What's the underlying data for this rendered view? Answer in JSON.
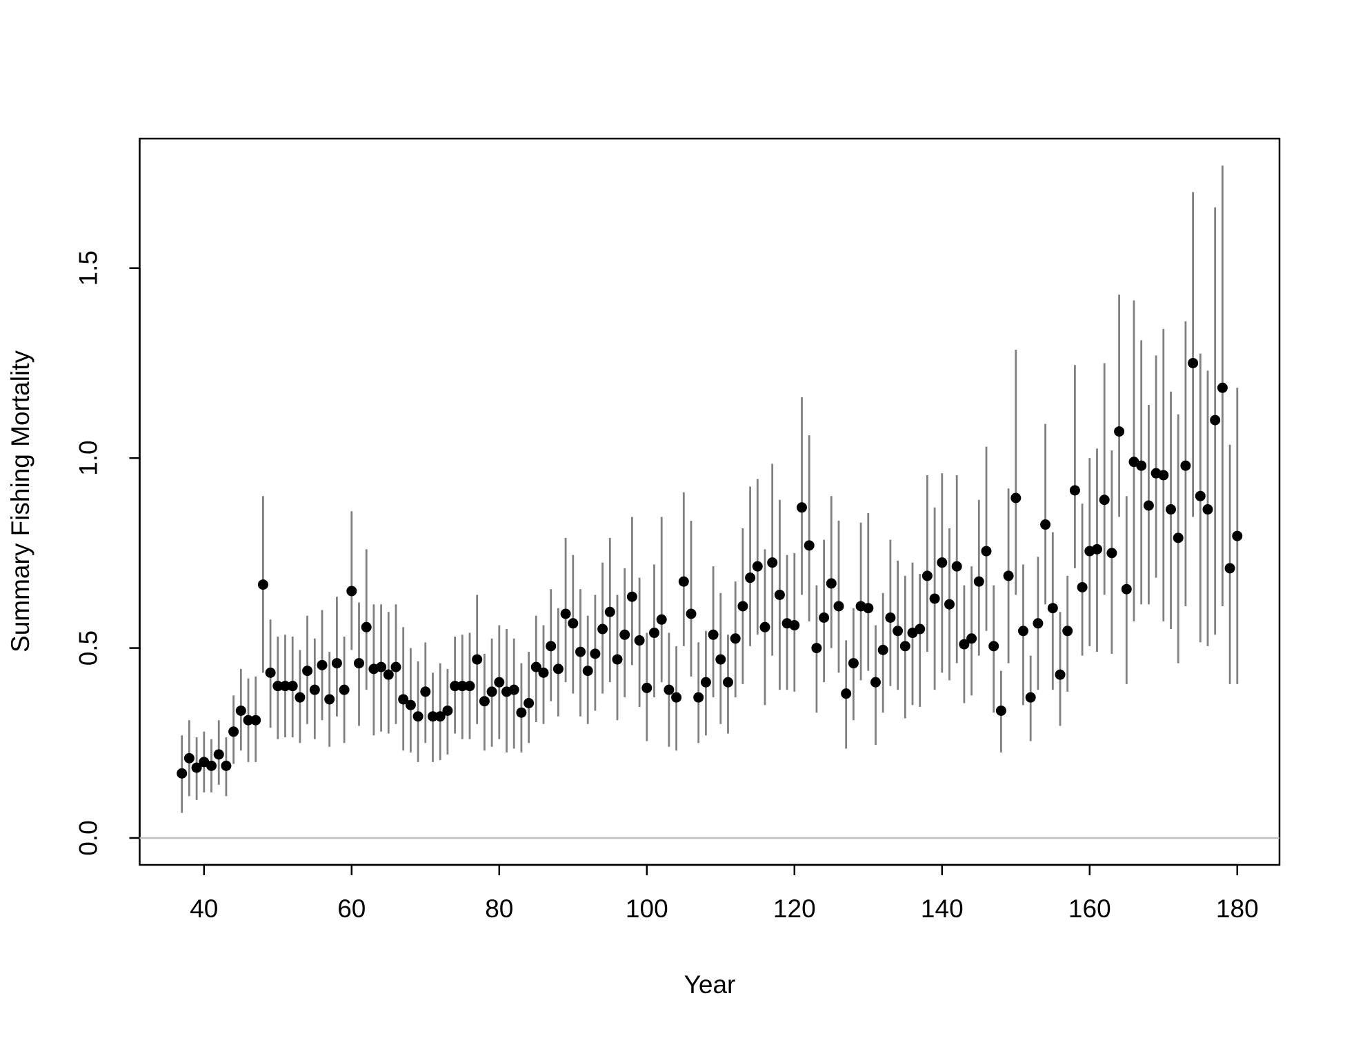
{
  "chart_data": {
    "type": "errorbar-scatter",
    "xlabel": "Year",
    "ylabel": "Summary Fishing Mortality",
    "x": [
      37,
      38,
      39,
      40,
      41,
      42,
      43,
      44,
      45,
      46,
      47,
      48,
      49,
      50,
      51,
      52,
      53,
      54,
      55,
      56,
      57,
      58,
      59,
      60,
      61,
      62,
      63,
      64,
      65,
      66,
      67,
      68,
      69,
      70,
      71,
      72,
      73,
      74,
      75,
      76,
      77,
      78,
      79,
      80,
      81,
      82,
      83,
      84,
      85,
      86,
      87,
      88,
      89,
      90,
      91,
      92,
      93,
      94,
      95,
      96,
      97,
      98,
      99,
      100,
      101,
      102,
      103,
      104,
      105,
      106,
      107,
      108,
      109,
      110,
      111,
      112,
      113,
      114,
      115,
      116,
      117,
      118,
      119,
      120,
      121,
      122,
      123,
      124,
      125,
      126,
      127,
      128,
      129,
      130,
      131,
      132,
      133,
      134,
      135,
      136,
      137,
      138,
      139,
      140,
      141,
      142,
      143,
      144,
      145,
      146,
      147,
      148,
      149,
      150,
      151,
      152,
      153,
      154,
      155,
      156,
      157,
      158,
      159,
      160,
      161,
      162,
      163,
      164,
      165,
      166,
      167,
      168,
      169,
      170,
      171,
      172,
      173,
      174,
      175,
      176,
      177,
      178,
      179,
      180
    ],
    "values": [
      0.17,
      0.21,
      0.185,
      0.2,
      0.19,
      0.22,
      0.19,
      0.28,
      0.335,
      0.31,
      0.31,
      0.667,
      0.435,
      0.4,
      0.4,
      0.4,
      0.37,
      0.44,
      0.39,
      0.455,
      0.365,
      0.46,
      0.39,
      0.65,
      0.46,
      0.555,
      0.445,
      0.45,
      0.43,
      0.45,
      0.365,
      0.35,
      0.32,
      0.385,
      0.32,
      0.32,
      0.335,
      0.4,
      0.4,
      0.4,
      0.47,
      0.36,
      0.385,
      0.41,
      0.385,
      0.39,
      0.33,
      0.355,
      0.45,
      0.435,
      0.505,
      0.445,
      0.59,
      0.565,
      0.49,
      0.44,
      0.485,
      0.55,
      0.595,
      0.47,
      0.535,
      0.635,
      0.52,
      0.395,
      0.54,
      0.575,
      0.39,
      0.37,
      0.675,
      0.59,
      0.37,
      0.41,
      0.535,
      0.47,
      0.41,
      0.525,
      0.61,
      0.685,
      0.715,
      0.555,
      0.725,
      0.64,
      0.565,
      0.56,
      0.87,
      0.77,
      0.5,
      0.58,
      0.67,
      0.61,
      0.38,
      0.46,
      0.61,
      0.605,
      0.41,
      0.495,
      0.58,
      0.545,
      0.505,
      0.54,
      0.55,
      0.69,
      0.63,
      0.725,
      0.615,
      0.715,
      0.51,
      0.525,
      0.675,
      0.755,
      0.505,
      0.335,
      0.69,
      0.895,
      0.545,
      0.37,
      0.565,
      0.825,
      0.605,
      0.43,
      0.545,
      0.915,
      0.66,
      0.755,
      0.76,
      0.89,
      0.75,
      1.07,
      0.655,
      0.99,
      0.98,
      0.875,
      0.96,
      0.955,
      0.865,
      0.79,
      0.98,
      1.25,
      0.9,
      0.865,
      1.1,
      1.185,
      0.71,
      0.795
    ],
    "lower": [
      0.066,
      0.11,
      0.1,
      0.12,
      0.12,
      0.14,
      0.11,
      0.195,
      0.23,
      0.2,
      0.2,
      0.435,
      0.29,
      0.26,
      0.265,
      0.265,
      0.25,
      0.3,
      0.26,
      0.31,
      0.24,
      0.32,
      0.25,
      0.495,
      0.295,
      0.39,
      0.27,
      0.28,
      0.275,
      0.3,
      0.23,
      0.225,
      0.2,
      0.25,
      0.2,
      0.205,
      0.22,
      0.275,
      0.26,
      0.26,
      0.3,
      0.23,
      0.24,
      0.26,
      0.225,
      0.235,
      0.225,
      0.25,
      0.305,
      0.3,
      0.36,
      0.32,
      0.41,
      0.38,
      0.32,
      0.3,
      0.335,
      0.38,
      0.41,
      0.31,
      0.37,
      0.455,
      0.345,
      0.255,
      0.37,
      0.41,
      0.24,
      0.23,
      0.505,
      0.425,
      0.25,
      0.27,
      0.37,
      0.3,
      0.275,
      0.37,
      0.405,
      0.505,
      0.535,
      0.35,
      0.48,
      0.39,
      0.39,
      0.385,
      0.64,
      0.57,
      0.33,
      0.41,
      0.5,
      0.435,
      0.235,
      0.31,
      0.415,
      0.44,
      0.245,
      0.33,
      0.4,
      0.39,
      0.315,
      0.35,
      0.345,
      0.49,
      0.39,
      0.435,
      0.415,
      0.46,
      0.355,
      0.375,
      0.48,
      0.545,
      0.33,
      0.225,
      0.46,
      0.64,
      0.35,
      0.255,
      0.39,
      0.615,
      0.39,
      0.295,
      0.385,
      0.71,
      0.48,
      0.505,
      0.49,
      0.64,
      0.485,
      0.845,
      0.405,
      0.57,
      0.615,
      0.615,
      0.685,
      0.57,
      0.55,
      0.46,
      0.61,
      0.845,
      0.515,
      0.505,
      0.535,
      0.61,
      0.405,
      0.405
    ],
    "upper": [
      0.27,
      0.31,
      0.265,
      0.28,
      0.26,
      0.31,
      0.265,
      0.375,
      0.445,
      0.42,
      0.425,
      0.9,
      0.575,
      0.53,
      0.535,
      0.53,
      0.495,
      0.585,
      0.525,
      0.6,
      0.49,
      0.635,
      0.53,
      0.86,
      0.62,
      0.76,
      0.615,
      0.615,
      0.595,
      0.615,
      0.555,
      0.5,
      0.465,
      0.515,
      0.435,
      0.46,
      0.445,
      0.53,
      0.535,
      0.54,
      0.64,
      0.485,
      0.525,
      0.56,
      0.55,
      0.525,
      0.46,
      0.49,
      0.585,
      0.56,
      0.655,
      0.605,
      0.79,
      0.745,
      0.655,
      0.585,
      0.64,
      0.725,
      0.79,
      0.64,
      0.71,
      0.845,
      0.685,
      0.54,
      0.72,
      0.845,
      0.54,
      0.505,
      0.91,
      0.835,
      0.515,
      0.545,
      0.715,
      0.645,
      0.535,
      0.675,
      0.815,
      0.925,
      0.945,
      0.76,
      0.985,
      0.89,
      0.745,
      0.75,
      1.16,
      1.06,
      0.665,
      0.785,
      0.9,
      0.835,
      0.52,
      0.605,
      0.83,
      0.855,
      0.56,
      0.645,
      0.785,
      0.73,
      0.69,
      0.725,
      0.695,
      0.955,
      0.87,
      0.96,
      0.815,
      0.955,
      0.665,
      0.715,
      0.89,
      1.03,
      0.665,
      0.44,
      0.92,
      1.285,
      0.72,
      0.48,
      0.74,
      1.09,
      0.805,
      0.595,
      0.69,
      1.245,
      0.88,
      1.0,
      1.025,
      1.25,
      1.02,
      1.43,
      0.9,
      1.415,
      1.31,
      1.14,
      1.27,
      1.34,
      1.175,
      1.115,
      1.36,
      1.7,
      1.275,
      1.23,
      1.66,
      1.77,
      1.035,
      1.185
    ],
    "color": "#000000",
    "errorbar_color": "#808080",
    "hline": 0,
    "hline_color": "#bebebe",
    "xlim": [
      31.28,
      185.72
    ],
    "xticks": [
      40,
      60,
      80,
      100,
      120,
      140,
      160,
      180
    ],
    "ylim": [
      -0.0708,
      1.8408
    ],
    "yticks": [
      {
        "value": 0,
        "label": "0.0"
      },
      0.5,
      {
        "value": 1,
        "label": "1.0"
      },
      1.5
    ]
  }
}
